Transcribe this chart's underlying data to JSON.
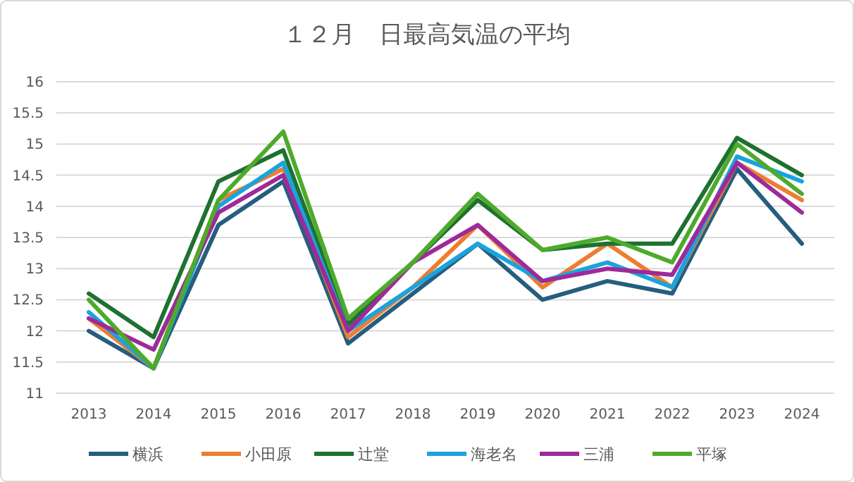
{
  "chart_data": {
    "type": "line",
    "title": "１２月　日最高気温の平均",
    "categories": [
      "2013",
      "2014",
      "2015",
      "2016",
      "2017",
      "2018",
      "2019",
      "2020",
      "2021",
      "2022",
      "2023",
      "2024"
    ],
    "ylim": [
      11,
      16
    ],
    "yticks": [
      11,
      11.5,
      12,
      12.5,
      13,
      13.5,
      14,
      14.5,
      15,
      15.5,
      16
    ],
    "grid": "y",
    "legend": "bottom",
    "marker": "none",
    "line_style": "solid",
    "series": [
      {
        "name": "横浜",
        "color": "#255e7e",
        "values": [
          12.0,
          11.4,
          13.7,
          14.4,
          11.8,
          12.6,
          13.4,
          12.5,
          12.8,
          12.6,
          14.6,
          13.4
        ]
      },
      {
        "name": "小田原",
        "color": "#ed7d31",
        "values": [
          12.2,
          11.4,
          14.1,
          14.6,
          11.9,
          12.7,
          13.7,
          12.7,
          13.4,
          12.7,
          14.7,
          14.1
        ]
      },
      {
        "name": "辻堂",
        "color": "#1e7130",
        "values": [
          12.6,
          11.9,
          14.4,
          14.9,
          12.1,
          13.1,
          14.1,
          13.3,
          13.4,
          13.4,
          15.1,
          14.5
        ]
      },
      {
        "name": "海老名",
        "color": "#1aa3de",
        "values": [
          12.3,
          11.4,
          14.0,
          14.7,
          12.0,
          12.7,
          13.4,
          12.8,
          13.1,
          12.7,
          14.8,
          14.4
        ]
      },
      {
        "name": "三浦",
        "color": "#9e2a9a",
        "values": [
          12.2,
          11.7,
          13.9,
          14.5,
          12.0,
          13.1,
          13.7,
          12.8,
          13.0,
          12.9,
          14.7,
          13.9
        ]
      },
      {
        "name": "平塚",
        "color": "#4eaa2b",
        "values": [
          12.5,
          11.4,
          14.1,
          15.2,
          12.2,
          13.1,
          14.2,
          13.3,
          13.5,
          13.1,
          15.0,
          14.2
        ]
      }
    ]
  }
}
